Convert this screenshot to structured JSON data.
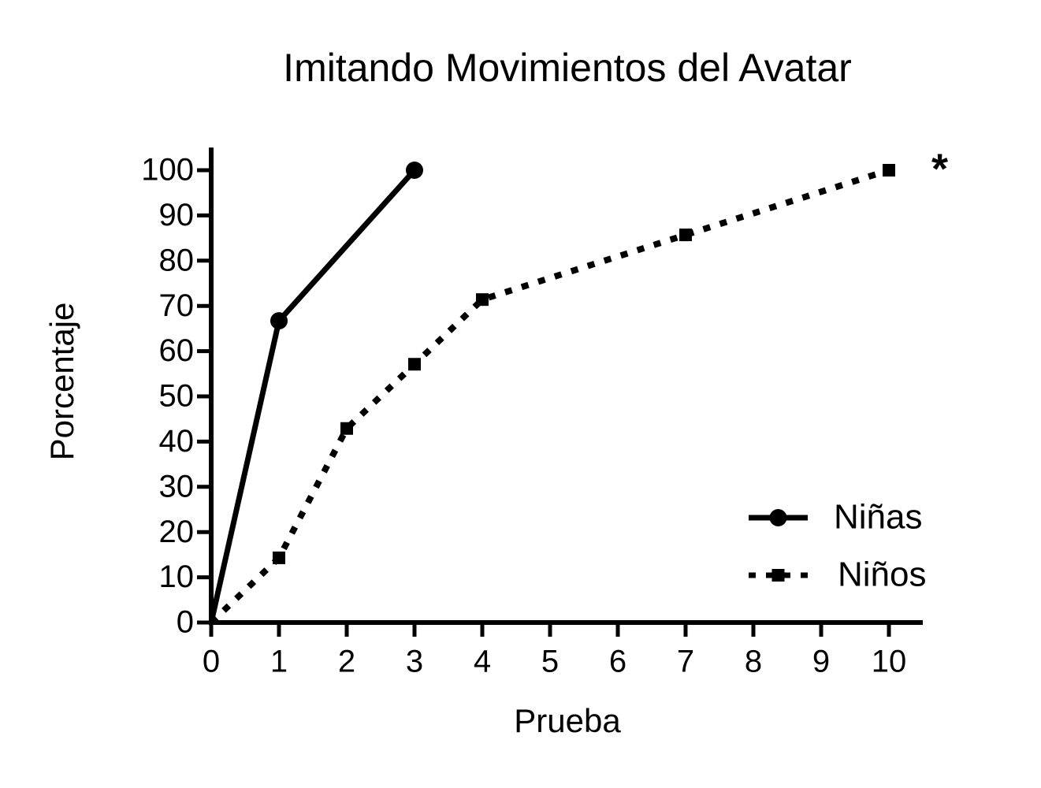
{
  "chart_data": {
    "type": "line",
    "title": "Imitando Movimientos del Avatar",
    "x_label": "Prueba",
    "y_label": "Porcentaje",
    "series": [
      {
        "name": "Niñas",
        "color": "#000000",
        "dash": "solid",
        "marker": "circle",
        "x": [
          0,
          1,
          3
        ],
        "values": [
          0,
          66.7,
          100
        ]
      },
      {
        "name": "Niños",
        "color": "#000000",
        "dash": "dotted",
        "marker": "square",
        "x": [
          0,
          1,
          2,
          3,
          4,
          7,
          10
        ],
        "values": [
          0,
          14.3,
          42.9,
          57.1,
          71.4,
          85.7,
          100
        ]
      }
    ],
    "xlim": [
      0,
      10.5
    ],
    "xticks": [
      0,
      1,
      2,
      3,
      4,
      5,
      6,
      7,
      8,
      9,
      10
    ],
    "ylim": [
      0,
      105
    ],
    "yticks": [
      0,
      10,
      20,
      30,
      40,
      50,
      60,
      70,
      80,
      90,
      100
    ],
    "annotations": [
      {
        "text": "*",
        "x": 10.75,
        "y": 101
      }
    ],
    "legend": "lower right",
    "grid": false
  }
}
